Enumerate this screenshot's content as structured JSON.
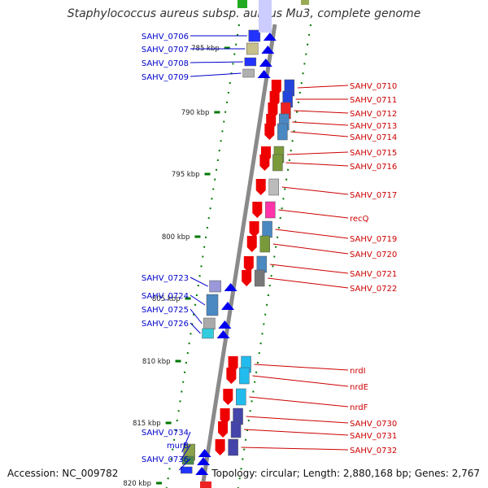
{
  "title": "Staphylococcus aureus subsp. aureus Mu3, complete genome",
  "footer": {
    "accession": "Accession: NC_009782",
    "topology": "Topology: circular; Length: 2,880,168 bp; Genes: 2,767"
  },
  "scale_labels": [
    "785 kbp",
    "790 kbp",
    "795 kbp",
    "800 kbp",
    "805 kbp",
    "810 kbp",
    "815 kbp",
    "820 kbp"
  ],
  "colors": {
    "forward_label": "#0000cc",
    "reverse_label": "#cc0000",
    "forward_arrow": "#0000ee",
    "reverse_arrow": "#ee0000",
    "backbone": "#8a8a8a",
    "tick": "#007700"
  },
  "genes_forward": [
    "SAHV_0706",
    "SAHV_0707",
    "SAHV_0708",
    "SAHV_0709",
    "SAHV_0723",
    "SAHV_0724",
    "SAHV_0725",
    "SAHV_0726",
    "SAHV_0734",
    "murB",
    "SAHV_0736"
  ],
  "genes_reverse": [
    "SAHV_0710",
    "SAHV_0711",
    "SAHV_0712",
    "SAHV_0713",
    "SAHV_0714",
    "SAHV_0715",
    "SAHV_0716",
    "SAHV_0717",
    "recQ",
    "SAHV_0719",
    "SAHV_0720",
    "SAHV_0721",
    "SAHV_0722",
    "nrdI",
    "nrdE",
    "nrdF",
    "SAHV_0730",
    "SAHV_0731",
    "SAHV_0732"
  ]
}
